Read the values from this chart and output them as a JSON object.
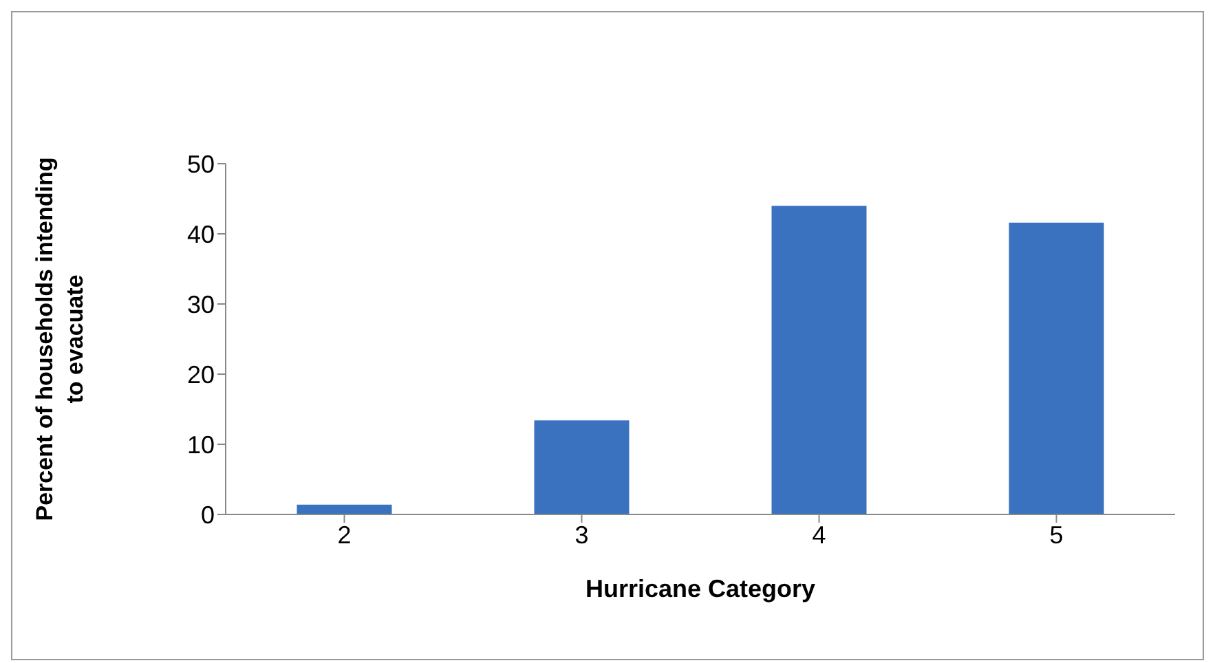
{
  "chart_data": {
    "type": "bar",
    "xlabel": "Hurricane Category",
    "ylabel": "Percent of  households intending to evacuate",
    "categories": [
      "2",
      "3",
      "4",
      "5"
    ],
    "values": [
      1.4,
      13.4,
      44.0,
      41.6
    ],
    "color": "#3a72c0",
    "ylim": [
      0,
      50
    ],
    "yticks": [
      0,
      10,
      20,
      30,
      40,
      50
    ],
    "grid": false
  }
}
